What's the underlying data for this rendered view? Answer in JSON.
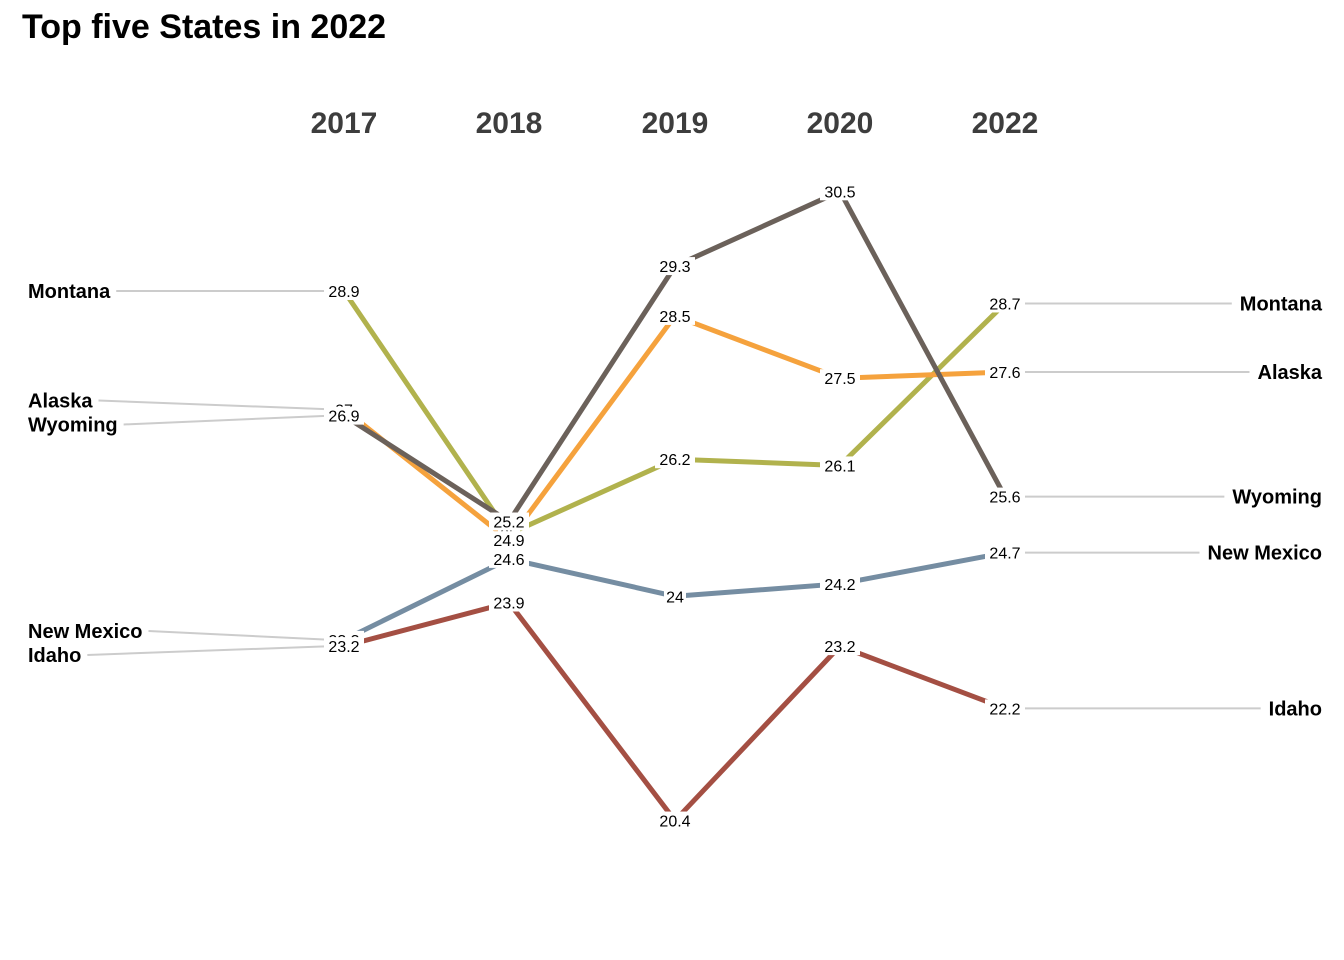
{
  "title": "Top five States in 2022",
  "chart_data": {
    "type": "line",
    "subtype": "slope",
    "title": "Top five States in 2022",
    "xlabel": "",
    "ylabel": "",
    "categories": [
      "2017",
      "2018",
      "2019",
      "2020",
      "2022"
    ],
    "ylim": [
      19.5,
      31.5
    ],
    "grid": false,
    "legend": "none",
    "label_color": "#cccccc",
    "series": [
      {
        "name": "Montana",
        "color": "#b1b24d",
        "values": [
          28.9,
          25,
          26.2,
          26.1,
          28.7
        ]
      },
      {
        "name": "Alaska",
        "color": "#f5a23d",
        "values": [
          27,
          24.9,
          28.5,
          27.5,
          27.6
        ]
      },
      {
        "name": "Wyoming",
        "color": "#6b615a",
        "values": [
          26.9,
          25.2,
          29.3,
          30.5,
          25.6
        ]
      },
      {
        "name": "New Mexico",
        "color": "#758da2",
        "values": [
          23.3,
          24.6,
          24,
          24.2,
          24.7
        ]
      },
      {
        "name": "Idaho",
        "color": "#a44f43",
        "values": [
          23.2,
          23.9,
          20.4,
          23.2,
          22.2
        ]
      }
    ]
  }
}
